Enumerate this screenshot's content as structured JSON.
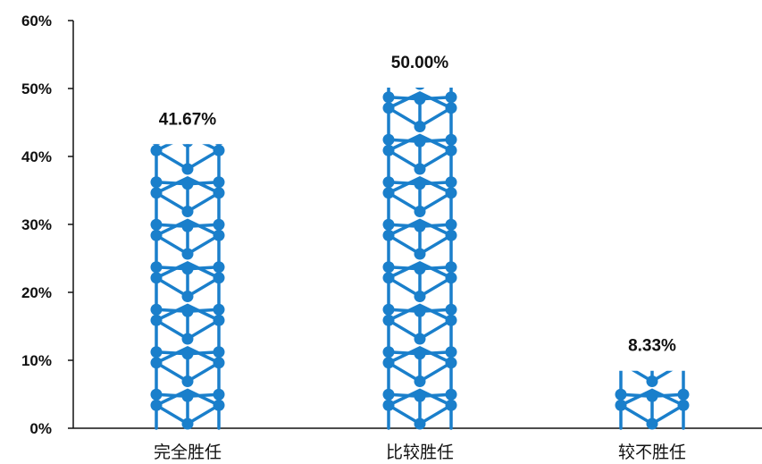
{
  "chart_data": {
    "type": "bar",
    "categories": [
      "完全胜任",
      "比较胜任",
      "较不胜任"
    ],
    "values": [
      41.67,
      50.0,
      8.33
    ],
    "data_labels": [
      "41.67%",
      "50.00%",
      "8.33%"
    ],
    "y_ticks": [
      "0%",
      "10%",
      "20%",
      "30%",
      "40%",
      "50%",
      "60%"
    ],
    "ylim": [
      0,
      60
    ],
    "title": "",
    "xlabel": "",
    "ylabel": "",
    "grid": false,
    "bar_color": "#1a7fcb"
  }
}
